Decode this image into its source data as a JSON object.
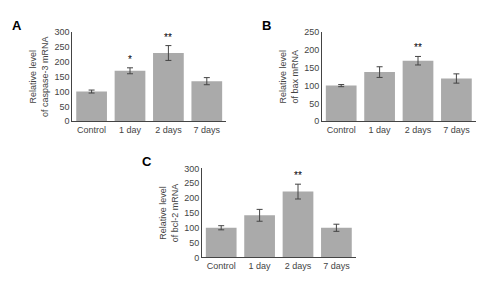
{
  "chart_data": [
    {
      "type": "bar",
      "title": "A",
      "categories": [
        "Control",
        "1 day",
        "2 days",
        "7 days"
      ],
      "values": [
        100,
        170,
        230,
        135
      ],
      "errors": [
        5,
        10,
        25,
        12
      ],
      "ylabel": "Relative level\nof caspase-3 mRNA",
      "ylim": [
        0,
        300
      ],
      "yticks": [
        0,
        50,
        100,
        150,
        200,
        250,
        300
      ],
      "color": "#aaaaaa",
      "grid": false,
      "annotations": [
        {
          "category": "1 day",
          "text": "*"
        },
        {
          "category": "2 days",
          "text": "**"
        }
      ]
    },
    {
      "type": "bar",
      "title": "B",
      "categories": [
        "Control",
        "1 day",
        "2 days",
        "7 days"
      ],
      "values": [
        100,
        138,
        170,
        120
      ],
      "errors": [
        3,
        15,
        12,
        13
      ],
      "ylabel": "Relative level\nof bax mRNA",
      "ylim": [
        0,
        250
      ],
      "yticks": [
        0,
        50,
        100,
        150,
        200,
        250
      ],
      "color": "#aaaaaa",
      "grid": false,
      "annotations": [
        {
          "category": "2 days",
          "text": "**"
        }
      ]
    },
    {
      "type": "bar",
      "title": "C",
      "categories": [
        "Control",
        "1 day",
        "2 days",
        "7 days"
      ],
      "values": [
        100,
        142,
        222,
        100
      ],
      "errors": [
        7,
        20,
        25,
        12
      ],
      "ylabel": "Relative level\nof bcl-2 mRNA",
      "ylim": [
        0,
        300
      ],
      "yticks": [
        0,
        50,
        100,
        150,
        200,
        250,
        300
      ],
      "color": "#aaaaaa",
      "grid": false,
      "annotations": [
        {
          "category": "2 days",
          "text": "**"
        }
      ]
    }
  ]
}
